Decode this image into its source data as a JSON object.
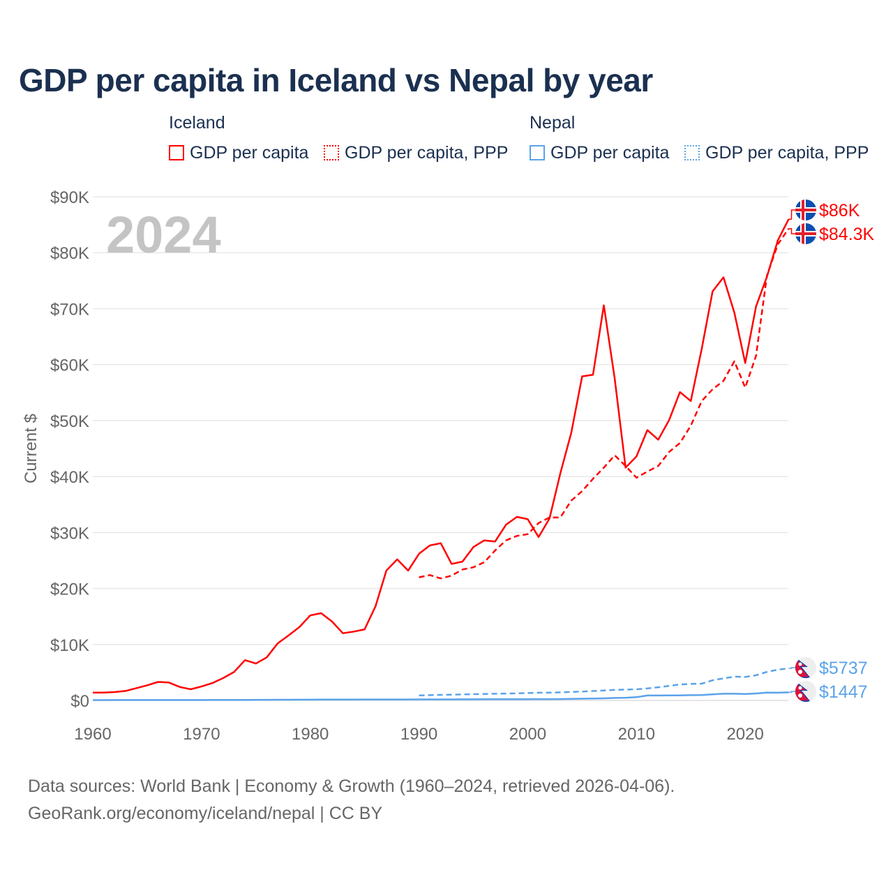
{
  "chart_data": {
    "type": "line",
    "title": "GDP per capita in Iceland vs Nepal by year",
    "ylabel": "Current $",
    "xlim": [
      1960,
      2024
    ],
    "ylim": [
      0,
      90000
    ],
    "yticks": [
      0,
      10000,
      20000,
      30000,
      40000,
      50000,
      60000,
      70000,
      80000,
      90000
    ],
    "ytick_labels": [
      "$0",
      "$10K",
      "$20K",
      "$30K",
      "$40K",
      "$50K",
      "$60K",
      "$70K",
      "$80K",
      "$90K"
    ],
    "xticks": [
      1960,
      1970,
      1980,
      1990,
      2000,
      2010,
      2020
    ],
    "xtick_labels": [
      "1960",
      "1970",
      "1980",
      "1990",
      "2000",
      "2010",
      "2020"
    ],
    "year_watermark": "2024",
    "grid": true,
    "legend_groups": [
      {
        "label": "Iceland",
        "items": [
          "GDP per capita",
          "GDP per capita, PPP"
        ]
      },
      {
        "label": "Nepal",
        "items": [
          "GDP per capita",
          "GDP per capita, PPP"
        ]
      }
    ],
    "series": [
      {
        "name": "Iceland GDP per capita",
        "color": "#ff0000",
        "dash": false,
        "end_label": "$86K",
        "flag": "iceland",
        "start": 1960,
        "values": [
          1400,
          1400,
          1500,
          1700,
          2200,
          2700,
          3300,
          3200,
          2400,
          2000,
          2500,
          3100,
          4000,
          5100,
          7200,
          6600,
          7700,
          10200,
          11600,
          13100,
          15200,
          15600,
          14100,
          12000,
          12300,
          12700,
          16800,
          23200,
          25200,
          23200,
          26200,
          27700,
          28100,
          24400,
          24800,
          27400,
          28600,
          28400,
          31400,
          32800,
          32400,
          29200,
          32500,
          40600,
          47800,
          57900,
          58200,
          70600,
          57500,
          41600,
          43600,
          48300,
          46600,
          50100,
          55100,
          53500,
          62800,
          73100,
          75600,
          69300,
          60300,
          70400,
          75700,
          82200,
          86000
        ]
      },
      {
        "name": "Iceland GDP per capita, PPP",
        "color": "#ff0000",
        "dash": true,
        "end_label": "$84.3K",
        "flag": "iceland",
        "start": 1990,
        "values": [
          22000,
          22400,
          21800,
          22300,
          23400,
          23800,
          24700,
          26800,
          28600,
          29400,
          29700,
          31700,
          32700,
          32700,
          35700,
          37400,
          39600,
          41600,
          43800,
          41900,
          39800,
          40900,
          41900,
          44400,
          46000,
          49100,
          53500,
          55600,
          57100,
          60600,
          55900,
          61600,
          75900,
          81500,
          84300
        ]
      },
      {
        "name": "Nepal GDP per capita",
        "color": "#5ba3ea",
        "dash": false,
        "end_label": "$1447",
        "flag": "nepal",
        "start": 1960,
        "values": [
          60,
          65,
          70,
          70,
          70,
          75,
          80,
          80,
          80,
          80,
          80,
          85,
          85,
          90,
          100,
          110,
          110,
          120,
          130,
          140,
          140,
          150,
          150,
          160,
          160,
          170,
          170,
          170,
          180,
          180,
          190,
          190,
          190,
          190,
          200,
          200,
          210,
          220,
          230,
          230,
          230,
          240,
          240,
          250,
          280,
          310,
          340,
          380,
          450,
          480,
          590,
          880,
          880,
          900,
          910,
          950,
          960,
          1100,
          1200,
          1200,
          1150,
          1250,
          1400,
          1380,
          1447
        ]
      },
      {
        "name": "Nepal GDP per capita, PPP",
        "color": "#5ba3ea",
        "dash": true,
        "end_label": "$5737",
        "flag": "nepal",
        "start": 1990,
        "values": [
          900,
          950,
          1000,
          1020,
          1080,
          1120,
          1150,
          1200,
          1230,
          1270,
          1320,
          1380,
          1400,
          1450,
          1520,
          1600,
          1680,
          1780,
          1880,
          1950,
          2000,
          2150,
          2350,
          2600,
          2850,
          2950,
          3000,
          3600,
          3950,
          4250,
          4200,
          4500,
          5100,
          5500,
          5737
        ]
      }
    ]
  },
  "source_line1": "Data sources: World Bank | Economy & Growth (1960–2024, retrieved 2026-04-06).",
  "source_line2": "GeoRank.org/economy/iceland/nepal | CC BY"
}
